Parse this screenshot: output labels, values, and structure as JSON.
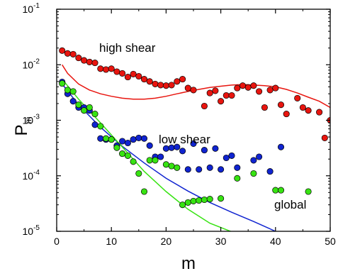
{
  "chart_data": {
    "type": "scatter",
    "xlabel": "m",
    "ylabel": "P",
    "ylabel_subscript": "m",
    "xlim": [
      0,
      50
    ],
    "ylim": [
      1e-05,
      0.1
    ],
    "yscale": "log",
    "grid": false,
    "legend": "none",
    "x_ticks": [
      "0",
      "10",
      "20",
      "30",
      "40",
      "50"
    ],
    "y_ticks": [
      {
        "base": "10",
        "exp": "-5",
        "value": 1e-05
      },
      {
        "base": "10",
        "exp": "-4",
        "value": 0.0001
      },
      {
        "base": "10",
        "exp": "-3",
        "value": 0.001
      },
      {
        "base": "10",
        "exp": "-2",
        "value": 0.01
      },
      {
        "base": "10",
        "exp": "-1",
        "value": 0.1
      }
    ],
    "annotations": [
      {
        "text": "high shear",
        "x": 8.2,
        "y": 0.0148
      },
      {
        "text": "low shear",
        "x": 19,
        "y": 0.00058
      },
      {
        "text": "global",
        "x": 40.5,
        "y": 3e-05
      }
    ],
    "series": [
      {
        "color": "#e8150f",
        "points": [
          [
            1,
            0.018
          ],
          [
            2,
            0.016
          ],
          [
            3,
            0.0155
          ],
          [
            4,
            0.0133
          ],
          [
            5,
            0.012
          ],
          [
            6,
            0.0112
          ],
          [
            7,
            0.0108
          ],
          [
            8,
            0.0085
          ],
          [
            9,
            0.0082
          ],
          [
            10,
            0.0085
          ],
          [
            11,
            0.0075
          ],
          [
            12,
            0.007
          ],
          [
            13,
            0.006
          ],
          [
            14,
            0.0068
          ],
          [
            15,
            0.0062
          ],
          [
            16,
            0.0055
          ],
          [
            17,
            0.005
          ],
          [
            18,
            0.0045
          ],
          [
            19,
            0.0043
          ],
          [
            20,
            0.0042
          ],
          [
            21,
            0.0043
          ],
          [
            22,
            0.005
          ],
          [
            23,
            0.0055
          ],
          [
            24,
            0.0038
          ],
          [
            25,
            0.0035
          ],
          [
            27,
            0.0018
          ],
          [
            28,
            0.0031
          ],
          [
            29,
            0.0034
          ],
          [
            30,
            0.0022
          ],
          [
            31,
            0.0028
          ],
          [
            32,
            0.0028
          ],
          [
            33,
            0.0038
          ],
          [
            34,
            0.0042
          ],
          [
            35,
            0.0039
          ],
          [
            36,
            0.0042
          ],
          [
            37,
            0.0033
          ],
          [
            38,
            0.0017
          ],
          [
            39,
            0.0035
          ],
          [
            40,
            0.0038
          ],
          [
            41,
            0.0019
          ],
          [
            42,
            0.0013
          ],
          [
            44,
            0.0025
          ],
          [
            45,
            0.0017
          ],
          [
            46,
            0.0015
          ],
          [
            48,
            0.0014
          ],
          [
            49,
            0.00048
          ],
          [
            50,
            0.001
          ]
        ],
        "fit": [
          [
            1,
            0.01
          ],
          [
            2,
            0.007
          ],
          [
            4,
            0.0045
          ],
          [
            6,
            0.0035
          ],
          [
            8,
            0.003
          ],
          [
            10,
            0.0027
          ],
          [
            12,
            0.0025
          ],
          [
            14,
            0.0024
          ],
          [
            16,
            0.0024
          ],
          [
            18,
            0.0025
          ],
          [
            20,
            0.0027
          ],
          [
            22,
            0.003
          ],
          [
            24,
            0.0033
          ],
          [
            26,
            0.0036
          ],
          [
            28,
            0.0039
          ],
          [
            30,
            0.0041
          ],
          [
            32,
            0.0043
          ],
          [
            34,
            0.0044
          ],
          [
            36,
            0.0043
          ],
          [
            38,
            0.0042
          ],
          [
            40,
            0.004
          ],
          [
            42,
            0.0036
          ],
          [
            44,
            0.0031
          ],
          [
            46,
            0.0026
          ],
          [
            48,
            0.0022
          ],
          [
            50,
            0.0017
          ]
        ]
      },
      {
        "color": "#1024d0",
        "points": [
          [
            1,
            0.0049
          ],
          [
            2,
            0.003
          ],
          [
            3,
            0.0022
          ],
          [
            4,
            0.0017
          ],
          [
            5,
            0.0017
          ],
          [
            6,
            0.0015
          ],
          [
            7,
            0.00083
          ],
          [
            8,
            0.00047
          ],
          [
            9,
            0.00045
          ],
          [
            10,
            0.00045
          ],
          [
            11,
            0.00035
          ],
          [
            12,
            0.00042
          ],
          [
            13,
            0.00039
          ],
          [
            14,
            0.00045
          ],
          [
            15,
            0.00048
          ],
          [
            16,
            0.00047
          ],
          [
            17,
            0.00035
          ],
          [
            18,
            0.00022
          ],
          [
            19,
            0.00022
          ],
          [
            20,
            0.00031
          ],
          [
            21,
            0.00032
          ],
          [
            22,
            0.00033
          ],
          [
            23,
            0.00028
          ],
          [
            24,
            0.00013
          ],
          [
            25,
            0.00038
          ],
          [
            26,
            0.00013
          ],
          [
            27,
            0.00029
          ],
          [
            28,
            0.00014
          ],
          [
            29,
            0.00031
          ],
          [
            30,
            0.00013
          ],
          [
            31,
            0.00021
          ],
          [
            32,
            0.00023
          ],
          [
            33,
            0.00014
          ],
          [
            36,
            0.00019
          ],
          [
            37,
            0.00022
          ],
          [
            39,
            0.00012
          ],
          [
            41,
            0.00033
          ]
        ],
        "fit": [
          [
            1,
            0.0045
          ],
          [
            4,
            0.0019
          ],
          [
            8,
            0.00075
          ],
          [
            12,
            0.00034
          ],
          [
            16,
            0.00017
          ],
          [
            20,
            9e-05
          ],
          [
            24,
            5.3e-05
          ],
          [
            28,
            3.3e-05
          ],
          [
            32,
            2.2e-05
          ],
          [
            36,
            1.5e-05
          ],
          [
            40,
            1e-05
          ]
        ]
      },
      {
        "color": "#37e312",
        "points": [
          [
            1,
            0.0046
          ],
          [
            2,
            0.0035
          ],
          [
            3,
            0.0033
          ],
          [
            4,
            0.0019
          ],
          [
            5,
            0.0015
          ],
          [
            6,
            0.0017
          ],
          [
            7,
            0.0013
          ],
          [
            8,
            0.00078
          ],
          [
            9,
            0.00047
          ],
          [
            10,
            0.00045
          ],
          [
            11,
            0.00032
          ],
          [
            12,
            0.00025
          ],
          [
            13,
            0.00023
          ],
          [
            14,
            0.00018
          ],
          [
            15,
            0.00011
          ],
          [
            16,
            5.2e-05
          ],
          [
            17,
            0.00019
          ],
          [
            18,
            0.00019
          ],
          [
            20,
            0.00016
          ],
          [
            21,
            0.00015
          ],
          [
            22,
            0.00014
          ],
          [
            23,
            3e-05
          ],
          [
            24,
            3.3e-05
          ],
          [
            25,
            3.5e-05
          ],
          [
            26,
            3.6e-05
          ],
          [
            27,
            3.7e-05
          ],
          [
            28,
            3.8e-05
          ],
          [
            30,
            3.9e-05
          ],
          [
            33,
            9e-05
          ],
          [
            36,
            0.00011
          ],
          [
            40,
            5.5e-05
          ],
          [
            41,
            5.5e-05
          ],
          [
            46,
            5.2e-05
          ]
        ],
        "fit": [
          [
            1,
            0.0055
          ],
          [
            4,
            0.0024
          ],
          [
            8,
            0.0009
          ],
          [
            12,
            0.00033
          ],
          [
            16,
            0.00012
          ],
          [
            20,
            5.2e-05
          ],
          [
            24,
            2.5e-05
          ],
          [
            28,
            1.4e-05
          ],
          [
            32,
            9.8e-06
          ]
        ]
      }
    ]
  }
}
